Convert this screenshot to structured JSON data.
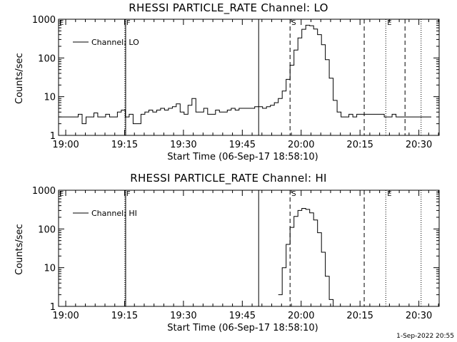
{
  "footer": "1-Sep-2022 20:55",
  "chart_data": [
    {
      "type": "line",
      "title": "RHESSI PARTICLE_RATE Channel: LO",
      "xlabel": "Start Time (06-Sep-17 18:58:10)",
      "ylabel": "Counts/sec",
      "x_unit": "minutes after 18:58:10",
      "xlim": [
        0,
        97
      ],
      "ylim": [
        1,
        1000
      ],
      "y_scale": "log",
      "xticks": [
        "19:00",
        "19:15",
        "19:30",
        "19:45",
        "20:00",
        "20:15",
        "20:30"
      ],
      "yticks": [
        "1",
        "10",
        "100",
        "1000"
      ],
      "legend": "top-left",
      "series": [
        {
          "name": "Channel: LO",
          "x": [
            0,
            4,
            5,
            6,
            7,
            8,
            9,
            10,
            11,
            12,
            13,
            14,
            15,
            16,
            17,
            18,
            19,
            20,
            21,
            22,
            23,
            24,
            25,
            26,
            27,
            28,
            29,
            30,
            31,
            32,
            33,
            34,
            35,
            36,
            37,
            38,
            39,
            40,
            41,
            42,
            43,
            44,
            45,
            46,
            47,
            48,
            49,
            50,
            51,
            52,
            53,
            54,
            55,
            56,
            57,
            58,
            59,
            60,
            61,
            62,
            63,
            64,
            65,
            66,
            67,
            68,
            69,
            70,
            71,
            72,
            73,
            74,
            75,
            76,
            77,
            78,
            79,
            80,
            81,
            82,
            83,
            84,
            85,
            86,
            87,
            88,
            89,
            90,
            91,
            92,
            93,
            94,
            95
          ],
          "y": [
            3,
            3,
            3.5,
            2,
            3,
            3,
            3.8,
            3,
            3,
            3.5,
            3,
            3,
            4,
            4.5,
            3,
            3.5,
            2,
            2,
            3.5,
            4,
            4.5,
            4,
            4.5,
            5,
            4.5,
            5,
            5.5,
            6.5,
            4,
            3.5,
            6,
            9,
            4,
            4,
            5,
            3.5,
            3.5,
            4.5,
            4,
            4,
            4.5,
            5,
            4.5,
            5,
            5,
            5,
            5,
            5.5,
            5.5,
            5,
            5.5,
            6,
            7,
            9,
            14,
            28,
            65,
            160,
            330,
            550,
            700,
            680,
            560,
            400,
            220,
            90,
            30,
            8,
            4,
            3,
            3,
            3.5,
            3,
            3.5,
            3.5,
            3.5,
            3.5,
            3.5,
            3.5,
            3.5,
            3,
            3,
            3.5,
            3,
            3,
            3,
            3,
            3,
            3,
            3,
            3,
            3,
            3
          ]
        }
      ],
      "vlines": [
        {
          "x": 16.9,
          "style": "dotted",
          "label": "F"
        },
        {
          "x": 17.1,
          "style": "solid",
          "label": ""
        },
        {
          "x": 51.0,
          "style": "solid",
          "label": ""
        },
        {
          "x": 59.0,
          "style": "dashed",
          "label": "S"
        },
        {
          "x": 88.3,
          "style": "dashed",
          "label": ""
        },
        {
          "x": 77.9,
          "style": "dashed",
          "label": ""
        },
        {
          "x": 83.4,
          "style": "dotted",
          "label": "E"
        },
        {
          "x": 92.4,
          "style": "dotted",
          "label": ""
        }
      ]
    },
    {
      "type": "line",
      "title": "RHESSI PARTICLE_RATE Channel: HI",
      "xlabel": "Start Time (06-Sep-17 18:58:10)",
      "ylabel": "Counts/sec",
      "x_unit": "minutes after 18:58:10",
      "xlim": [
        0,
        97
      ],
      "ylim": [
        1,
        1000
      ],
      "y_scale": "log",
      "xticks": [
        "19:00",
        "19:15",
        "19:30",
        "19:45",
        "20:00",
        "20:15",
        "20:30"
      ],
      "yticks": [
        "1",
        "10",
        "100",
        "1000"
      ],
      "legend": "top-left",
      "series": [
        {
          "name": "Channel: HI",
          "x": [
            56,
            57,
            58,
            59,
            60,
            61,
            62,
            63,
            64,
            65,
            66,
            67,
            68,
            69,
            70
          ],
          "y": [
            2,
            10,
            40,
            110,
            210,
            300,
            340,
            320,
            260,
            170,
            80,
            25,
            6,
            1.5,
            1
          ]
        }
      ],
      "vlines": [
        {
          "x": 16.9,
          "style": "dotted",
          "label": "F"
        },
        {
          "x": 17.1,
          "style": "solid",
          "label": ""
        },
        {
          "x": 51.0,
          "style": "solid",
          "label": ""
        },
        {
          "x": 59.0,
          "style": "dashed",
          "label": "S"
        },
        {
          "x": 77.9,
          "style": "dashed",
          "label": ""
        },
        {
          "x": 83.4,
          "style": "dotted",
          "label": "E"
        },
        {
          "x": 92.4,
          "style": "dotted",
          "label": ""
        }
      ]
    }
  ]
}
